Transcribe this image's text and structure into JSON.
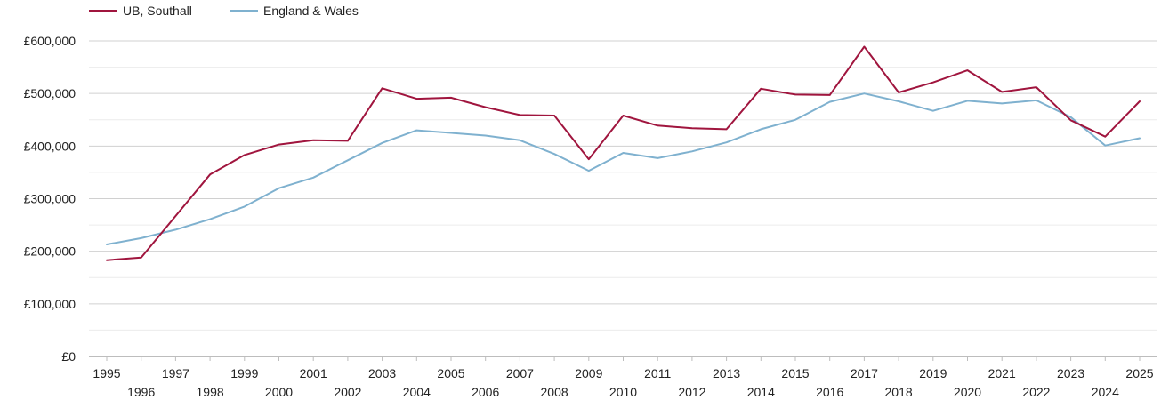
{
  "chart_data": {
    "type": "line",
    "title": "",
    "xlabel": "",
    "ylabel": "",
    "x": [
      1995,
      1996,
      1997,
      1998,
      1999,
      2000,
      2001,
      2002,
      2003,
      2004,
      2005,
      2006,
      2007,
      2008,
      2009,
      2010,
      2011,
      2012,
      2013,
      2014,
      2015,
      2016,
      2017,
      2018,
      2019,
      2020,
      2021,
      2022,
      2023,
      2024,
      2025
    ],
    "ylim": [
      0,
      600000
    ],
    "yticks": [
      0,
      100000,
      200000,
      300000,
      400000,
      500000,
      600000
    ],
    "ytick_labels": [
      "£0",
      "£100,000",
      "£200,000",
      "£300,000",
      "£400,000",
      "£500,000",
      "£600,000"
    ],
    "xtick_labels": [
      "1995",
      "1996",
      "1997",
      "1998",
      "1999",
      "2000",
      "2001",
      "2002",
      "2003",
      "2004",
      "2005",
      "2006",
      "2007",
      "2008",
      "2009",
      "2010",
      "2011",
      "2012",
      "2013",
      "2014",
      "2015",
      "2016",
      "2017",
      "2018",
      "2019",
      "2020",
      "2021",
      "2022",
      "2023",
      "2024",
      "2025"
    ],
    "grid": true,
    "legend_position": "top-left",
    "series": [
      {
        "name": "UB, Southall",
        "color": "#a0153e",
        "values": [
          183000,
          188000,
          267000,
          346000,
          383000,
          403000,
          411000,
          410000,
          510000,
          490000,
          492000,
          474000,
          459000,
          458000,
          375000,
          458000,
          439000,
          434000,
          432000,
          509000,
          498000,
          497000,
          589000,
          502000,
          521000,
          544000,
          503000,
          512000,
          449000,
          418000,
          485000
        ]
      },
      {
        "name": "England & Wales",
        "color": "#7fb1cf",
        "values": [
          213000,
          225000,
          241000,
          261000,
          285000,
          320000,
          340000,
          373000,
          406000,
          430000,
          425000,
          420000,
          411000,
          385000,
          353000,
          387000,
          377000,
          390000,
          407000,
          432000,
          450000,
          484000,
          500000,
          485000,
          467000,
          486000,
          481000,
          487000,
          455000,
          401000,
          415000
        ]
      }
    ]
  }
}
